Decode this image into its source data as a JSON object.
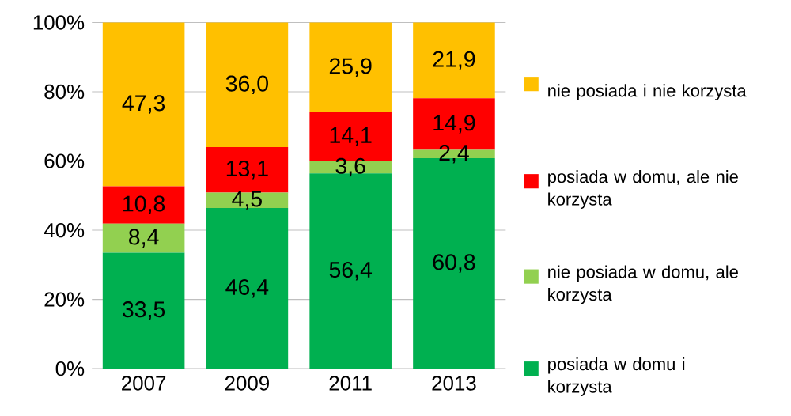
{
  "chart_data": {
    "type": "bar",
    "stacked": true,
    "categories": [
      "2007",
      "2009",
      "2011",
      "2013"
    ],
    "series": [
      {
        "name": "posiada w domu i korzysta",
        "color": "#00b050",
        "values": [
          33.5,
          46.4,
          56.4,
          60.8
        ],
        "value_labels": [
          "33,5",
          "46,4",
          "56,4",
          "60,8"
        ]
      },
      {
        "name": "nie posiada w domu, ale korzysta",
        "color": "#92d050",
        "values": [
          8.4,
          4.5,
          3.6,
          2.4
        ],
        "value_labels": [
          "8,4",
          "4,5",
          "3,6",
          "2,4"
        ]
      },
      {
        "name": "posiada w domu, ale nie korzysta",
        "color": "#ff0000",
        "values": [
          10.8,
          13.1,
          14.1,
          14.9
        ],
        "value_labels": [
          "10,8",
          "13,1",
          "14,1",
          "14,9"
        ]
      },
      {
        "name": "nie posiada i nie korzysta",
        "color": "#ffc000",
        "values": [
          47.3,
          36.0,
          25.9,
          21.9
        ],
        "value_labels": [
          "47,3",
          "36,0",
          "25,9",
          "21,9"
        ]
      }
    ],
    "ylim": [
      0,
      100
    ],
    "yticks": [
      {
        "value": 0,
        "label": "0%"
      },
      {
        "value": 20,
        "label": "20%"
      },
      {
        "value": 40,
        "label": "40%"
      },
      {
        "value": 60,
        "label": "60%"
      },
      {
        "value": 80,
        "label": "80%"
      },
      {
        "value": 100,
        "label": "100%"
      }
    ],
    "grid": "y",
    "legend": "right"
  }
}
